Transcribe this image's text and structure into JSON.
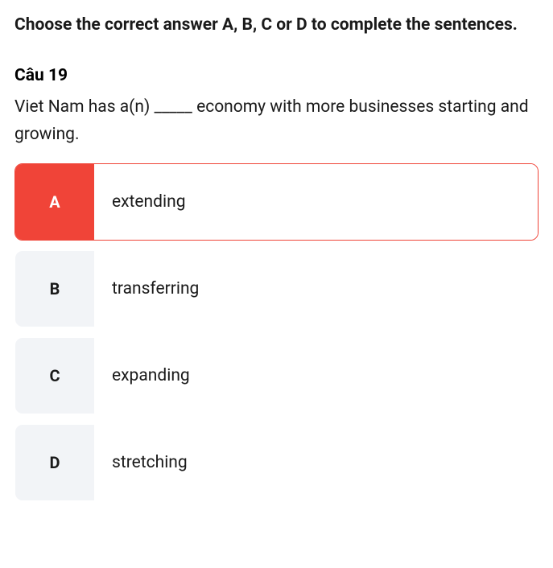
{
  "instructions": "Choose the correct answer A, B, C or D to complete the sentences.",
  "question_number": "Câu 19",
  "question_text": "Viet Nam has a(n) _____ economy with more businesses starting and growing.",
  "options": [
    {
      "letter": "A",
      "text": "extending",
      "selected": true
    },
    {
      "letter": "B",
      "text": "transferring",
      "selected": false
    },
    {
      "letter": "C",
      "text": "expanding",
      "selected": false
    },
    {
      "letter": "D",
      "text": "stretching",
      "selected": false
    }
  ],
  "colors": {
    "selected_bg": "#f04438",
    "selected_text": "#ffffff",
    "default_letter_bg": "#f2f4f7",
    "question_number_color": "#2b9fe6",
    "text_color": "#1a1a1a"
  }
}
